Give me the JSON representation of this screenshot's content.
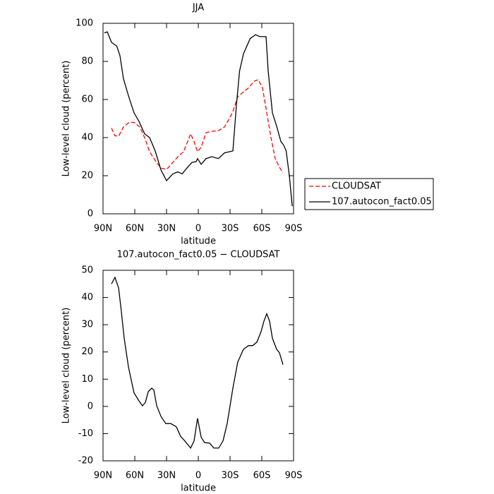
{
  "chart_data": [
    {
      "type": "line",
      "title": "JJA",
      "xlabel": "latitude",
      "ylabel": "Low-level cloud (percent)",
      "xlim": [
        90,
        -90
      ],
      "ylim": [
        0,
        100
      ],
      "xticks": [
        {
          "value": 90,
          "label": "90N"
        },
        {
          "value": 60,
          "label": "60N"
        },
        {
          "value": 30,
          "label": "30N"
        },
        0,
        {
          "value": -30,
          "label": "30S"
        },
        {
          "value": -60,
          "label": "60S"
        },
        {
          "value": -90,
          "label": "90S"
        }
      ],
      "yticks": [
        0,
        20,
        40,
        60,
        80,
        100
      ],
      "legend": "right",
      "series": [
        {
          "name": "CLOUDSAT",
          "color": "#ff0000",
          "dashed": true,
          "x": [
            82,
            78.7,
            75.3,
            70.7,
            65.3,
            60.7,
            55.3,
            50.7,
            46,
            40.7,
            35.3,
            30,
            24,
            19.3,
            14,
            10,
            7.3,
            4,
            0.7,
            -2.7,
            -7.3,
            -12.7,
            -19.3,
            -24.7,
            -29.3,
            -32.7,
            -37.3,
            -42.7,
            -47.3,
            -52.7,
            -56.7,
            -60.7,
            -64.7,
            -68.7,
            -72.7,
            -76.7,
            -80
          ],
          "values": [
            45,
            41,
            40.7,
            45.6,
            48,
            48,
            45.6,
            40,
            32.6,
            28,
            24,
            23.3,
            27,
            30,
            32.6,
            38,
            42,
            38,
            32.6,
            35,
            42.6,
            43.3,
            43.7,
            45.6,
            50,
            53.7,
            61.5,
            64,
            66,
            69.6,
            70.4,
            66,
            53,
            40,
            29,
            24.4,
            21.5
          ]
        },
        {
          "name": "107.autocon_fact0.05",
          "color": "#000000",
          "dashed": false,
          "x": [
            88.7,
            86,
            82,
            77,
            74,
            70.7,
            66,
            60.7,
            56,
            50.7,
            46,
            40.7,
            35.3,
            30,
            24,
            19.3,
            15.3,
            10.7,
            6,
            2,
            0.7,
            -2.7,
            -7.3,
            -12.7,
            -19,
            -24.7,
            -32.7,
            -36,
            -39,
            -42.7,
            -49,
            -54,
            -58,
            -64,
            -66,
            -70,
            -74,
            -78,
            -80.7,
            -83,
            -86,
            -88.7
          ],
          "values": [
            95,
            95.5,
            90,
            88,
            83,
            71,
            62,
            53,
            48.5,
            42,
            40,
            33,
            23,
            17.4,
            21,
            22,
            21,
            24,
            27,
            27.4,
            29,
            26,
            29,
            30,
            29,
            32,
            33,
            57,
            75,
            84,
            92,
            94,
            93,
            93,
            75,
            53,
            46,
            38,
            36,
            33,
            20,
            4
          ]
        }
      ]
    },
    {
      "type": "line",
      "title": "107.autocon_fact0.05 − CLOUDSAT",
      "xlabel": "latitude",
      "ylabel": "Low-level cloud (percent)",
      "xlim": [
        90,
        -90
      ],
      "ylim": [
        -20,
        50
      ],
      "xticks": [
        {
          "value": 90,
          "label": "90N"
        },
        {
          "value": 60,
          "label": "60N"
        },
        {
          "value": 30,
          "label": "30N"
        },
        0,
        {
          "value": -30,
          "label": "30S"
        },
        {
          "value": -60,
          "label": "60S"
        },
        {
          "value": -90,
          "label": "90S"
        }
      ],
      "yticks": [
        -20,
        -10,
        0,
        10,
        20,
        30,
        40,
        50
      ],
      "series": [
        {
          "color": "#000000",
          "dashed": false,
          "x": [
            82,
            78.7,
            75.3,
            72.7,
            70,
            66,
            60.7,
            56,
            52.7,
            50,
            47.3,
            44,
            42,
            39.3,
            35.3,
            30.7,
            26,
            20.7,
            16.7,
            12.7,
            7.3,
            4,
            0.7,
            -2.7,
            -6,
            -10.7,
            -14.7,
            -19.3,
            -23.3,
            -27.3,
            -32.7,
            -37.3,
            -42.7,
            -47.3,
            -51.3,
            -55.3,
            -59.3,
            -62,
            -64.7,
            -67.3,
            -70,
            -74,
            -76.7,
            -80
          ],
          "values": [
            45,
            47.4,
            43.5,
            35,
            25,
            14.5,
            5,
            2,
            0.2,
            1.5,
            5.4,
            6.7,
            6,
            0.2,
            -3.7,
            -6.3,
            -6.3,
            -7.5,
            -11,
            -12.7,
            -15.3,
            -12.7,
            -4.4,
            -11.4,
            -13.3,
            -13.5,
            -15.3,
            -15.3,
            -12.7,
            -6.3,
            6.7,
            16.3,
            21,
            22.3,
            22.3,
            23.6,
            27.5,
            31.3,
            34,
            31.3,
            25,
            21,
            19.7,
            15.3
          ]
        }
      ]
    }
  ]
}
